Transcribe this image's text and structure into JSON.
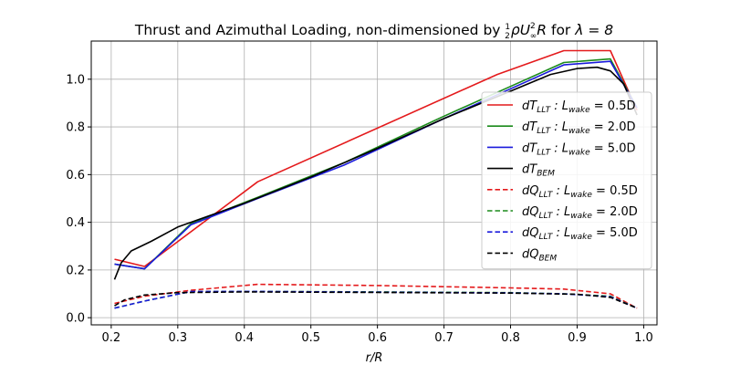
{
  "chart_data": {
    "type": "line",
    "title": {
      "text": "Thrust and Azimuthal Loading, non-dimensioned by",
      "formula_prefix": "ρU",
      "formula_sup": "2",
      "formula_sub": "∞",
      "formula_suffix": "R",
      "formula_for": "for",
      "lambda_expr": "λ = 8",
      "fraction_num": "1",
      "fraction_den": "2"
    },
    "xlabel": "r/R",
    "ylabel": "",
    "xlim": [
      0.17,
      1.02
    ],
    "ylim": [
      -0.03,
      1.16
    ],
    "x_ticks": [
      0.2,
      0.3,
      0.4,
      0.5,
      0.6,
      0.7,
      0.8,
      0.9,
      1.0
    ],
    "x_tick_labels": [
      "0.2",
      "0.3",
      "0.4",
      "0.5",
      "0.6",
      "0.7",
      "0.8",
      "0.9",
      "1.0"
    ],
    "y_ticks": [
      0.0,
      0.2,
      0.4,
      0.6,
      0.8,
      1.0
    ],
    "y_tick_labels": [
      "0.0",
      "0.2",
      "0.4",
      "0.6",
      "0.8",
      "1.0"
    ],
    "grid": true,
    "legend_position": "right",
    "series": [
      {
        "id": "dT_llt_05",
        "name": "dT_LLT: L_wake = 0.5D",
        "leg_base": "dT",
        "leg_sub": "LLT",
        "leg_mid": " : L",
        "leg_sub2": "wake",
        "leg_tail": " =  0.5D",
        "color": "#e41a1c",
        "dashed": false,
        "x": [
          0.205,
          0.25,
          0.42,
          0.78,
          0.88,
          0.95,
          0.99
        ],
        "y": [
          0.245,
          0.215,
          0.57,
          1.02,
          1.12,
          1.12,
          0.87
        ]
      },
      {
        "id": "dT_llt_20",
        "name": "dT_LLT: L_wake = 2.0D",
        "leg_base": "dT",
        "leg_sub": "LLT",
        "leg_mid": " : L",
        "leg_sub2": "wake",
        "leg_tail": " =  2.0D",
        "color": "#1a8a1a",
        "dashed": false,
        "x": [
          0.205,
          0.25,
          0.32,
          0.42,
          0.55,
          0.7,
          0.8,
          0.88,
          0.95,
          0.99
        ],
        "y": [
          0.225,
          0.205,
          0.395,
          0.505,
          0.65,
          0.845,
          0.97,
          1.07,
          1.085,
          0.88
        ]
      },
      {
        "id": "dT_llt_50",
        "name": "dT_LLT: L_wake = 5.0D",
        "leg_base": "dT",
        "leg_sub": "LLT",
        "leg_mid": " : L",
        "leg_sub2": "wake",
        "leg_tail": " =  5.0D",
        "color": "#1a1adc",
        "dashed": false,
        "x": [
          0.205,
          0.25,
          0.32,
          0.42,
          0.55,
          0.7,
          0.8,
          0.88,
          0.95,
          0.99
        ],
        "y": [
          0.225,
          0.205,
          0.39,
          0.5,
          0.64,
          0.835,
          0.96,
          1.06,
          1.075,
          0.88
        ]
      },
      {
        "id": "dT_bem",
        "name": "dT_BEM",
        "leg_base": "dT",
        "leg_sub": "BEM",
        "leg_mid": "",
        "leg_sub2": "",
        "leg_tail": "",
        "color": "#000000",
        "dashed": false,
        "x": [
          0.205,
          0.215,
          0.23,
          0.26,
          0.3,
          0.35,
          0.4,
          0.5,
          0.6,
          0.7,
          0.8,
          0.86,
          0.9,
          0.93,
          0.95,
          0.97,
          0.99
        ],
        "y": [
          0.16,
          0.23,
          0.28,
          0.32,
          0.38,
          0.43,
          0.48,
          0.59,
          0.71,
          0.835,
          0.95,
          1.02,
          1.045,
          1.05,
          1.035,
          0.98,
          0.85
        ]
      },
      {
        "id": "dQ_llt_05",
        "name": "dQ_LLT: L_wake = 0.5D",
        "leg_base": "dQ",
        "leg_sub": "LLT",
        "leg_mid": " : L",
        "leg_sub2": "wake",
        "leg_tail": " =  0.5D",
        "color": "#e41a1c",
        "dashed": true,
        "x": [
          0.205,
          0.25,
          0.32,
          0.42,
          0.6,
          0.8,
          0.88,
          0.95,
          0.99
        ],
        "y": [
          0.06,
          0.09,
          0.115,
          0.14,
          0.135,
          0.125,
          0.12,
          0.1,
          0.04
        ]
      },
      {
        "id": "dQ_llt_20",
        "name": "dQ_LLT: L_wake = 2.0D",
        "leg_base": "dQ",
        "leg_sub": "LLT",
        "leg_mid": " : L",
        "leg_sub2": "wake",
        "leg_tail": " =  2.0D",
        "color": "#1a8a1a",
        "dashed": true,
        "x": [
          0.205,
          0.25,
          0.32,
          0.42,
          0.6,
          0.8,
          0.88,
          0.95,
          0.99
        ],
        "y": [
          0.04,
          0.07,
          0.11,
          0.11,
          0.108,
          0.105,
          0.1,
          0.09,
          0.04
        ]
      },
      {
        "id": "dQ_llt_50",
        "name": "dQ_LLT: L_wake = 5.0D",
        "leg_base": "dQ",
        "leg_sub": "LLT",
        "leg_mid": " : L",
        "leg_sub2": "wake",
        "leg_tail": " =  5.0D",
        "color": "#1a1adc",
        "dashed": true,
        "x": [
          0.205,
          0.25,
          0.32,
          0.42,
          0.6,
          0.8,
          0.88,
          0.95,
          0.99
        ],
        "y": [
          0.04,
          0.07,
          0.11,
          0.11,
          0.107,
          0.104,
          0.1,
          0.088,
          0.04
        ]
      },
      {
        "id": "dQ_bem",
        "name": "dQ_BEM",
        "leg_base": "dQ",
        "leg_sub": "BEM",
        "leg_mid": "",
        "leg_sub2": "",
        "leg_tail": "",
        "color": "#000000",
        "dashed": true,
        "x": [
          0.205,
          0.22,
          0.25,
          0.3,
          0.4,
          0.6,
          0.8,
          0.9,
          0.95,
          0.99
        ],
        "y": [
          0.05,
          0.075,
          0.095,
          0.105,
          0.108,
          0.106,
          0.103,
          0.098,
          0.085,
          0.04
        ]
      }
    ]
  }
}
